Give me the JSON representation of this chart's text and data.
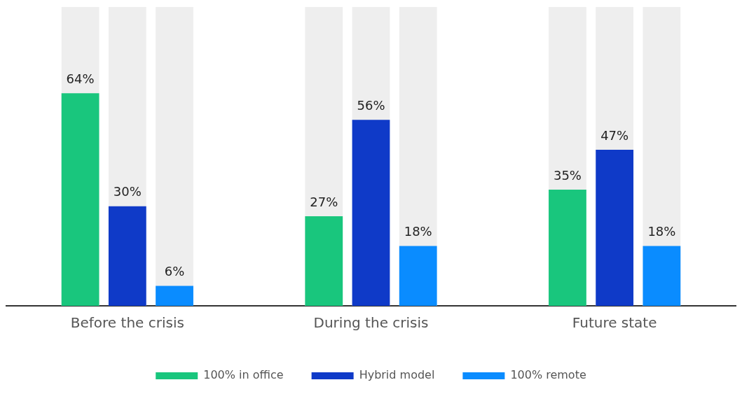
{
  "chart_data": {
    "type": "bar",
    "categories": [
      "Before the crisis",
      "During the crisis",
      "Future state"
    ],
    "series": [
      {
        "name": "100% in office",
        "color": "#19c67d",
        "values": [
          64,
          27,
          35
        ],
        "value_labels": [
          "64%",
          "27%",
          "35%"
        ]
      },
      {
        "name": "Hybrid model",
        "color": "#0f3ac8",
        "values": [
          30,
          56,
          47
        ],
        "value_labels": [
          "30%",
          "56%",
          "47%"
        ]
      },
      {
        "name": "100% remote",
        "color": "#0a8cff",
        "values": [
          6,
          18,
          18
        ],
        "value_labels": [
          "6%",
          "18%",
          "18%"
        ]
      }
    ],
    "tick_labels": "x",
    "grid": false,
    "legend": "bottom"
  }
}
